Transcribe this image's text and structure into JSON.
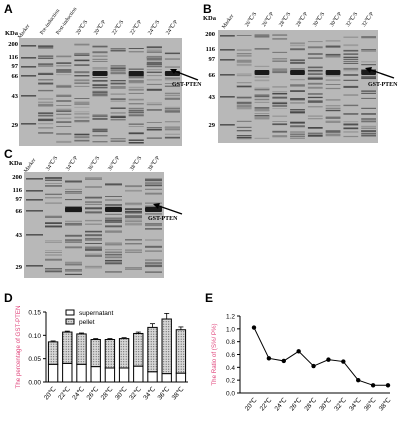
{
  "figure": {
    "panels": {
      "A": {
        "letter": "A",
        "kda": "KDa",
        "marker": "Marker",
        "mw": [
          "200",
          "116",
          "97",
          "66",
          "43",
          "29"
        ],
        "lanes": [
          "Pre-induction",
          "Post-induction",
          "20℃/S",
          "20℃/P",
          "22℃/S",
          "22℃/P",
          "24℃/S",
          "24℃/P"
        ],
        "annotation": "GST-PTEN"
      },
      "B": {
        "letter": "B",
        "kda": "KDa",
        "marker": "Marker",
        "mw": [
          "200",
          "116",
          "97",
          "66",
          "43",
          "29"
        ],
        "lanes": [
          "26℃/S",
          "26℃/P",
          "28℃/S",
          "28℃/P",
          "30℃/S",
          "30℃/P",
          "32℃/S",
          "32℃/P"
        ],
        "annotation": "GST-PTEN"
      },
      "C": {
        "letter": "C",
        "kda": "KDa",
        "marker": "Marker",
        "mw": [
          "200",
          "116",
          "97",
          "66",
          "43",
          "29"
        ],
        "lanes": [
          "34℃/S",
          "34℃/P",
          "36℃/S",
          "36℃/P",
          "38℃/S",
          "38℃/P"
        ],
        "annotation": "GST-PTEN"
      },
      "D": {
        "letter": "D"
      },
      "E": {
        "letter": "E"
      }
    }
  },
  "chart_data": [
    {
      "panel": "D",
      "type": "bar",
      "stacked": true,
      "categories": [
        "20℃",
        "22℃",
        "24℃",
        "26℃",
        "28℃",
        "30℃",
        "32℃",
        "34℃",
        "36℃",
        "38℃"
      ],
      "series": [
        {
          "name": "supernatant",
          "values": [
            0.038,
            0.04,
            0.038,
            0.033,
            0.03,
            0.03,
            0.034,
            0.022,
            0.018,
            0.019
          ],
          "color": "#ffffff"
        },
        {
          "name": "pellet",
          "values": [
            0.048,
            0.067,
            0.065,
            0.058,
            0.061,
            0.063,
            0.07,
            0.095,
            0.117,
            0.093
          ],
          "color": "#c8c8c8",
          "pattern": "dotted"
        }
      ],
      "errors": [
        0.002,
        0.002,
        0.002,
        0.002,
        0.002,
        0.002,
        0.003,
        0.008,
        0.012,
        0.006
      ],
      "ylabel": "The percentage of GST-PTEN",
      "ylim": [
        0,
        0.15
      ],
      "yticks": [
        "0.00",
        "0.05",
        "0.10",
        "0.15"
      ]
    },
    {
      "panel": "E",
      "type": "line",
      "x": [
        "20℃",
        "22℃",
        "24℃",
        "26℃",
        "28℃",
        "30℃",
        "32℃",
        "34℃",
        "36℃",
        "38℃"
      ],
      "y": [
        1.02,
        0.54,
        0.5,
        0.65,
        0.42,
        0.52,
        0.49,
        0.2,
        0.12,
        0.12
      ],
      "errors": [
        0.01,
        0.02,
        0.01,
        0.03,
        0.02,
        0.01,
        0.02,
        0.01,
        0.01,
        0.01
      ],
      "ylabel": "The Ratio of (S%/ P%)",
      "ylim": [
        0,
        1.2
      ],
      "yticks": [
        "0.0",
        "0.2",
        "0.4",
        "0.6",
        "0.8",
        "1.0",
        "1.2"
      ]
    }
  ]
}
